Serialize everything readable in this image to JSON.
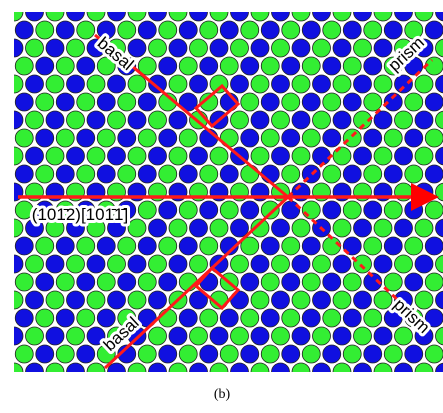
{
  "labels": {
    "basal_top": "basal",
    "prism_top": "prism",
    "plane": "(101̄2)[101̄1̄]",
    "prism_bottom": "prism",
    "basal_bottom": "basal"
  },
  "caption": "(b)"
}
